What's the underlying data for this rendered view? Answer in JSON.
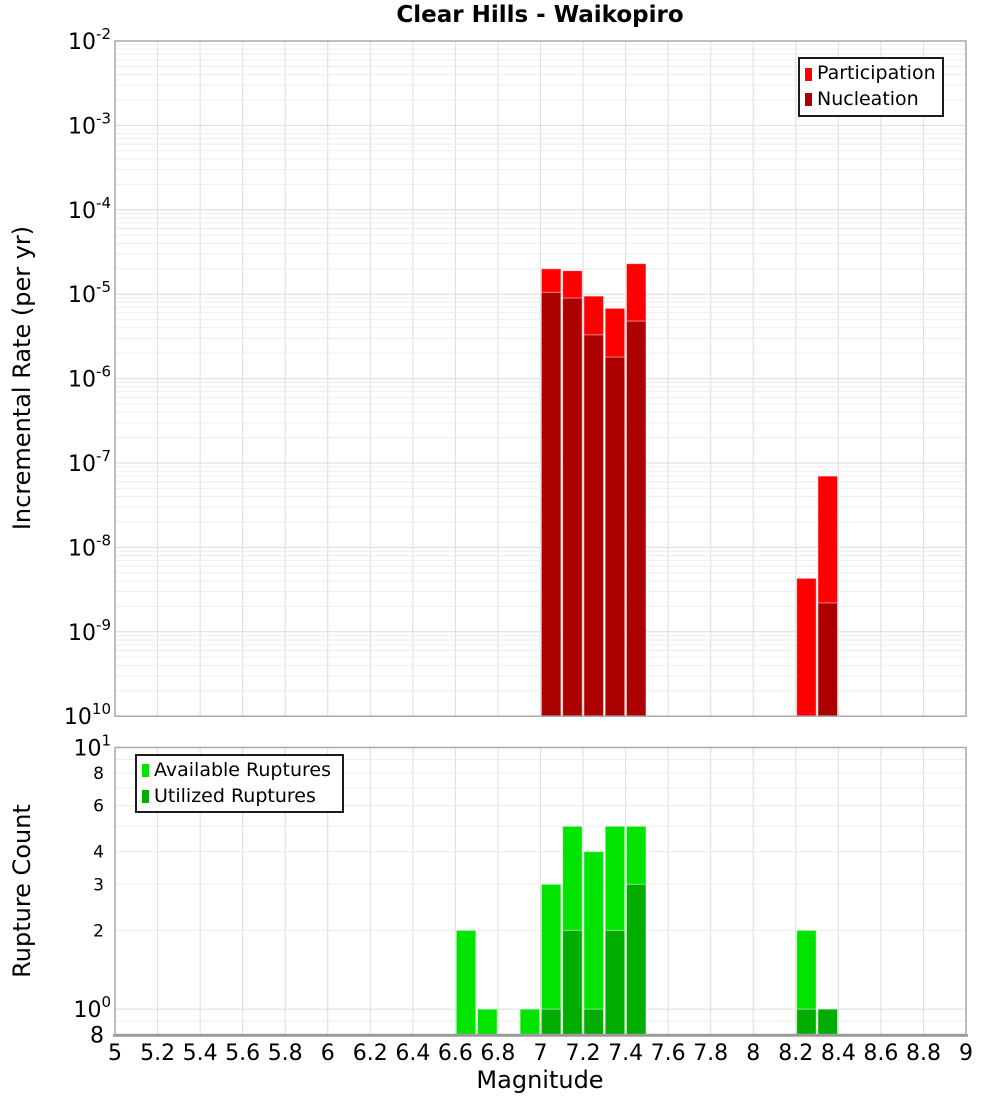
{
  "figure": {
    "title": "Clear Hills - Waikopiro"
  },
  "x_axis": {
    "label": "Magnitude",
    "ticks": [
      {
        "v": 5,
        "label": "5"
      },
      {
        "v": 5.2,
        "label": "5.2"
      },
      {
        "v": 5.4,
        "label": "5.4"
      },
      {
        "v": 5.6,
        "label": "5.6"
      },
      {
        "v": 5.8,
        "label": "5.8"
      },
      {
        "v": 6,
        "label": "6"
      },
      {
        "v": 6.2,
        "label": "6.2"
      },
      {
        "v": 6.4,
        "label": "6.4"
      },
      {
        "v": 6.6,
        "label": "6.6"
      },
      {
        "v": 6.8,
        "label": "6.8"
      },
      {
        "v": 7,
        "label": "7"
      },
      {
        "v": 7.2,
        "label": "7.2"
      },
      {
        "v": 7.4,
        "label": "7.4"
      },
      {
        "v": 7.6,
        "label": "7.6"
      },
      {
        "v": 7.8,
        "label": "7.8"
      },
      {
        "v": 8,
        "label": "8"
      },
      {
        "v": 8.2,
        "label": "8.2"
      },
      {
        "v": 8.4,
        "label": "8.4"
      },
      {
        "v": 8.6,
        "label": "8.6"
      },
      {
        "v": 8.8,
        "label": "8.8"
      },
      {
        "v": 9,
        "label": "9"
      }
    ]
  },
  "top_panel": {
    "ylabel": "Incremental Rate (per yr)",
    "y_ticks": [
      {
        "exp": -2,
        "sup": "-2"
      },
      {
        "exp": -3,
        "sup": "-3"
      },
      {
        "exp": -4,
        "sup": "-4"
      },
      {
        "exp": -5,
        "sup": "-5"
      },
      {
        "exp": -6,
        "sup": "-6"
      },
      {
        "exp": -7,
        "sup": "-7"
      },
      {
        "exp": -8,
        "sup": "-8"
      },
      {
        "exp": -9,
        "sup": "-9"
      },
      {
        "exp": -10,
        "sup": "10"
      }
    ]
  },
  "bottom_panel": {
    "ylabel": "Rupture Count",
    "y_major_ticks": [
      {
        "v": 10,
        "sup": "1"
      },
      {
        "v": 1,
        "sup": "0"
      }
    ],
    "y_minor_labels": [
      {
        "v": 8,
        "label": "8"
      },
      {
        "v": 6,
        "label": "6"
      },
      {
        "v": 4,
        "label": "4"
      },
      {
        "v": 3,
        "label": "3"
      },
      {
        "v": 2,
        "label": "2"
      }
    ],
    "y_bottom_label": {
      "v": 0.8,
      "label": "8"
    }
  },
  "legends": {
    "top": {
      "entries": [
        {
          "label": "Participation",
          "color": "#ff0000"
        },
        {
          "label": "Nucleation",
          "color": "#ad0000"
        }
      ]
    },
    "bottom": {
      "entries": [
        {
          "label": "Available Ruptures",
          "color": "#00e400"
        },
        {
          "label": "Utilized Ruptures",
          "color": "#00ad00"
        }
      ]
    }
  },
  "chart_data": [
    {
      "type": "bar",
      "panel": "top",
      "title": "Clear Hills - Waikopiro",
      "xlabel": "Magnitude",
      "ylabel": "Incremental Rate (per yr)",
      "x_range": [
        5,
        9
      ],
      "y_range": [
        1e-10,
        0.01
      ],
      "y_scale": "log",
      "bin_width": 0.1,
      "grid": true,
      "legend_position": "top-right",
      "series": [
        {
          "name": "Participation",
          "color": "#ff0000",
          "points": [
            {
              "mag": 7.05,
              "value": 2e-05
            },
            {
              "mag": 7.15,
              "value": 1.9e-05
            },
            {
              "mag": 7.25,
              "value": 9.5e-06
            },
            {
              "mag": 7.35,
              "value": 6.8e-06
            },
            {
              "mag": 7.45,
              "value": 2.3e-05
            },
            {
              "mag": 8.25,
              "value": 4.3e-09
            },
            {
              "mag": 8.35,
              "value": 7e-08
            }
          ]
        },
        {
          "name": "Nucleation",
          "color": "#ad0000",
          "points": [
            {
              "mag": 7.05,
              "value": 1.05e-05
            },
            {
              "mag": 7.15,
              "value": 9e-06
            },
            {
              "mag": 7.25,
              "value": 3.3e-06
            },
            {
              "mag": 7.35,
              "value": 1.8e-06
            },
            {
              "mag": 7.45,
              "value": 4.8e-06
            },
            {
              "mag": 8.35,
              "value": 2.2e-09
            }
          ]
        }
      ]
    },
    {
      "type": "bar",
      "panel": "bottom",
      "xlabel": "Magnitude",
      "ylabel": "Rupture Count",
      "x_range": [
        5,
        9
      ],
      "y_range": [
        0.8,
        10
      ],
      "y_scale": "log",
      "bin_width": 0.1,
      "grid": true,
      "legend_position": "top-left",
      "series": [
        {
          "name": "Available Ruptures",
          "color": "#00e400",
          "points": [
            {
              "mag": 6.65,
              "value": 2
            },
            {
              "mag": 6.75,
              "value": 1
            },
            {
              "mag": 6.95,
              "value": 1
            },
            {
              "mag": 7.05,
              "value": 3
            },
            {
              "mag": 7.15,
              "value": 5
            },
            {
              "mag": 7.25,
              "value": 4
            },
            {
              "mag": 7.35,
              "value": 5
            },
            {
              "mag": 7.45,
              "value": 5
            },
            {
              "mag": 8.25,
              "value": 2
            },
            {
              "mag": 8.35,
              "value": 1
            }
          ]
        },
        {
          "name": "Utilized Ruptures",
          "color": "#00ad00",
          "points": [
            {
              "mag": 7.05,
              "value": 1
            },
            {
              "mag": 7.15,
              "value": 2
            },
            {
              "mag": 7.25,
              "value": 1
            },
            {
              "mag": 7.35,
              "value": 2
            },
            {
              "mag": 7.45,
              "value": 3
            },
            {
              "mag": 8.25,
              "value": 1
            },
            {
              "mag": 8.35,
              "value": 1
            }
          ]
        }
      ]
    }
  ]
}
